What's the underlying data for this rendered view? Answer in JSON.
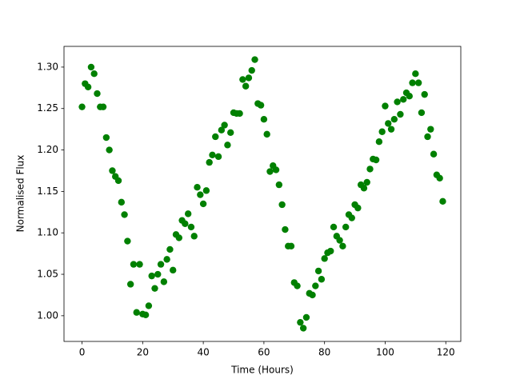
{
  "chart_data": {
    "type": "scatter",
    "xlabel": "Time (Hours)",
    "ylabel": "Normalised Flux",
    "color": "#008000",
    "x": [
      0,
      1,
      2,
      3,
      4,
      5,
      6,
      7,
      8,
      9,
      10,
      11,
      12,
      13,
      14,
      15,
      16,
      17,
      18,
      19,
      20,
      21,
      22,
      23,
      24,
      25,
      26,
      27,
      28,
      29,
      30,
      31,
      32,
      33,
      34,
      35,
      36,
      37,
      38,
      39,
      40,
      41,
      42,
      43,
      44,
      45,
      46,
      47,
      48,
      49,
      50,
      51,
      52,
      53,
      54,
      55,
      56,
      57,
      58,
      59,
      60,
      61,
      62,
      63,
      64,
      65,
      66,
      67,
      68,
      69,
      70,
      71,
      72,
      73,
      74,
      75,
      76,
      77,
      78,
      79,
      80,
      81,
      82,
      83,
      84,
      85,
      86,
      87,
      88,
      89,
      90,
      91,
      92,
      93,
      94,
      95,
      96,
      97,
      98,
      99,
      100,
      101,
      102,
      103,
      104,
      105,
      106,
      107,
      108,
      109,
      110,
      111,
      112,
      113,
      114,
      115,
      116,
      117,
      118,
      119
    ],
    "values": [
      1.252,
      1.28,
      1.276,
      1.3,
      1.292,
      1.268,
      1.252,
      1.252,
      1.215,
      1.2,
      1.175,
      1.168,
      1.163,
      1.137,
      1.122,
      1.09,
      1.038,
      1.062,
      1.004,
      1.062,
      1.002,
      1.001,
      1.012,
      1.048,
      1.033,
      1.05,
      1.062,
      1.041,
      1.068,
      1.08,
      1.055,
      1.098,
      1.094,
      1.115,
      1.111,
      1.123,
      1.107,
      1.096,
      1.155,
      1.146,
      1.135,
      1.151,
      1.185,
      1.194,
      1.216,
      1.192,
      1.224,
      1.23,
      1.206,
      1.221,
      1.245,
      1.244,
      1.244,
      1.285,
      1.277,
      1.287,
      1.296,
      1.309,
      1.256,
      1.254,
      1.237,
      1.219,
      1.174,
      1.181,
      1.176,
      1.158,
      1.134,
      1.104,
      1.084,
      1.084,
      1.04,
      1.036,
      0.992,
      0.985,
      0.998,
      1.027,
      1.025,
      1.036,
      1.054,
      1.044,
      1.069,
      1.076,
      1.078,
      1.107,
      1.096,
      1.091,
      1.084,
      1.107,
      1.122,
      1.118,
      1.134,
      1.13,
      1.158,
      1.154,
      1.161,
      1.177,
      1.189,
      1.188,
      1.21,
      1.222,
      1.253,
      1.232,
      1.225,
      1.237,
      1.258,
      1.243,
      1.261,
      1.269,
      1.265,
      1.281,
      1.292,
      1.281,
      1.245,
      1.267,
      1.216,
      1.225,
      1.195,
      1.17,
      1.166,
      1.138
    ],
    "xlim": [
      -5.95,
      124.95
    ],
    "xticks": [
      0,
      20,
      40,
      60,
      80,
      100,
      120
    ],
    "ylim": [
      0.969,
      1.325
    ],
    "yticks": [
      {
        "value": 1,
        "label": "1.00"
      },
      1.05,
      {
        "value": 1.1,
        "label": "1.10"
      },
      1.15,
      {
        "value": 1.2,
        "label": "1.20"
      },
      1.25,
      {
        "value": 1.3,
        "label": "1.30"
      }
    ]
  }
}
